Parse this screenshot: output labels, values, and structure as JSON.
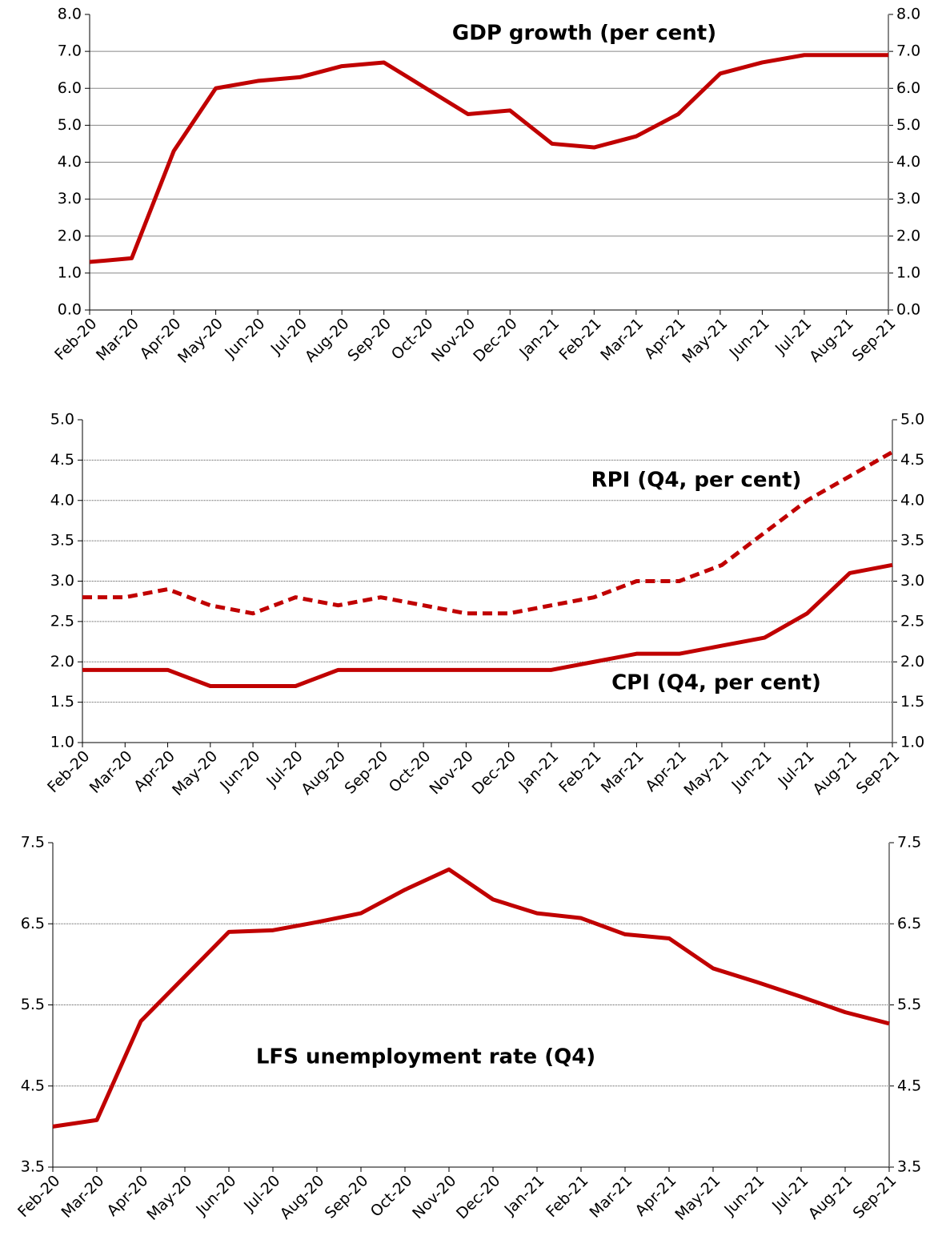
{
  "chart_data": [
    {
      "type": "line",
      "title": "GDP growth (per cent)",
      "categories": [
        "Feb-20",
        "Mar-20",
        "Apr-20",
        "May-20",
        "Jun-20",
        "Jul-20",
        "Aug-20",
        "Sep-20",
        "Oct-20",
        "Nov-20",
        "Dec-20",
        "Jan-21",
        "Feb-21",
        "Mar-21",
        "Apr-21",
        "May-21",
        "Jun-21",
        "Jul-21",
        "Aug-21",
        "Sep-21"
      ],
      "series": [
        {
          "color": "#c00000",
          "values": [
            1.3,
            1.4,
            4.3,
            6.0,
            6.2,
            6.3,
            6.6,
            6.7,
            6.0,
            5.3,
            5.4,
            4.5,
            4.4,
            4.7,
            5.3,
            6.4,
            6.7,
            6.9,
            6.9,
            6.9
          ]
        }
      ],
      "ylim": [
        0,
        8
      ],
      "yticks": [
        {
          "value": 0,
          "label": "0.0"
        },
        {
          "value": 1,
          "label": "1.0"
        },
        {
          "value": 2,
          "label": "2.0"
        },
        {
          "value": 3,
          "label": "3.0"
        },
        {
          "value": 4,
          "label": "4.0"
        },
        {
          "value": 5,
          "label": "5.0"
        },
        {
          "value": 6,
          "label": "6.0"
        },
        {
          "value": 7,
          "label": "7.0"
        },
        {
          "value": 8,
          "label": "8.0"
        }
      ],
      "grid": true
    },
    {
      "type": "line",
      "categories": [
        "Feb-20",
        "Mar-20",
        "Apr-20",
        "May-20",
        "Jun-20",
        "Jul-20",
        "Aug-20",
        "Sep-20",
        "Oct-20",
        "Nov-20",
        "Dec-20",
        "Jan-21",
        "Feb-21",
        "Mar-21",
        "Apr-21",
        "May-21",
        "Jun-21",
        "Jul-21",
        "Aug-21",
        "Sep-21"
      ],
      "series": [
        {
          "name": "RPI (Q4, per cent)",
          "color": "#c00000",
          "dashed": true,
          "values": [
            2.8,
            2.8,
            2.9,
            2.7,
            2.6,
            2.8,
            2.7,
            2.8,
            2.7,
            2.6,
            2.6,
            2.7,
            2.8,
            3.0,
            3.0,
            3.2,
            3.6,
            4.0,
            4.3,
            4.6
          ]
        },
        {
          "name": "CPI (Q4, per cent)",
          "color": "#c00000",
          "dashed": false,
          "values": [
            1.9,
            1.9,
            1.9,
            1.7,
            1.7,
            1.7,
            1.9,
            1.9,
            1.9,
            1.9,
            1.9,
            1.9,
            2.0,
            2.1,
            2.1,
            2.2,
            2.3,
            2.6,
            3.1,
            3.2
          ]
        }
      ],
      "ylim": [
        1,
        5
      ],
      "yticks": [
        {
          "value": 1,
          "label": "1.0"
        },
        1.5,
        {
          "value": 2,
          "label": "2.0"
        },
        2.5,
        {
          "value": 3,
          "label": "3.0"
        },
        3.5,
        {
          "value": 4,
          "label": "4.0"
        },
        4.5,
        {
          "value": 5,
          "label": "5.0"
        }
      ],
      "grid": true
    },
    {
      "type": "line",
      "title": "LFS unemployment rate (Q4)",
      "categories": [
        "Feb-20",
        "Mar-20",
        "Apr-20",
        "May-20",
        "Jun-20",
        "Jul-20",
        "Aug-20",
        "Sep-20",
        "Oct-20",
        "Nov-20",
        "Dec-20",
        "Jan-21",
        "Feb-21",
        "Mar-21",
        "Apr-21",
        "May-21",
        "Jun-21",
        "Jul-21",
        "Aug-21",
        "Sep-21"
      ],
      "series": [
        {
          "color": "#c00000",
          "values": [
            4.0,
            4.08,
            5.3,
            5.85,
            6.4,
            6.42,
            6.52,
            6.63,
            6.92,
            7.17,
            6.8,
            6.63,
            6.57,
            6.37,
            6.32,
            5.95,
            5.78,
            5.6,
            5.41,
            5.27
          ]
        }
      ],
      "ylim": [
        3.5,
        7.5
      ],
      "yticks": [
        3.5,
        4.5,
        5.5,
        6.5,
        7.5
      ],
      "grid": true
    }
  ]
}
